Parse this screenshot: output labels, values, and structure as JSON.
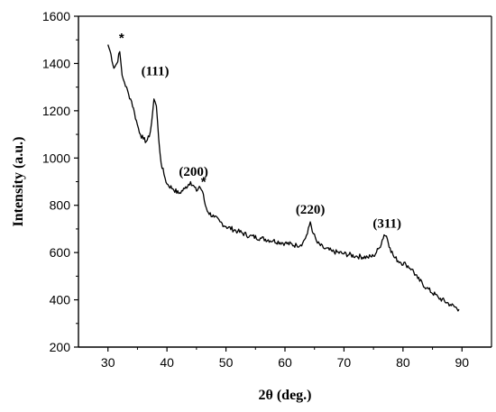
{
  "chart_data": {
    "type": "line",
    "xlabel": "2θ (deg.)",
    "ylabel": "Intensity (a.u.)",
    "xlim": [
      25,
      95
    ],
    "ylim": [
      200,
      1600
    ],
    "x_ticks": [
      30,
      40,
      50,
      60,
      70,
      80,
      90
    ],
    "y_ticks": [
      200,
      400,
      600,
      800,
      1000,
      1200,
      1400,
      1600
    ],
    "x_tick_labels": [
      "30",
      "40",
      "50",
      "60",
      "70",
      "80",
      "90"
    ],
    "y_tick_labels": [
      "200",
      "400",
      "600",
      "800",
      "1000",
      "1200",
      "1400",
      "1600"
    ],
    "grid": false,
    "line_color": "#000000",
    "series": [
      {
        "x": [
          30,
          30.5,
          31,
          31.5,
          32,
          32.4,
          32.8,
          33.5,
          34,
          34.5,
          35,
          35.5,
          36,
          36.5,
          37,
          37.4,
          37.8,
          38.2,
          38.6,
          39,
          39.5,
          40,
          41,
          42,
          43,
          44,
          45,
          45.5,
          46,
          46.5,
          47,
          48,
          49,
          50,
          52,
          54,
          56,
          58,
          60,
          62,
          63,
          63.8,
          64.3,
          64.8,
          65.5,
          66.5,
          68,
          70,
          72,
          74,
          75,
          76,
          76.8,
          77.2,
          77.8,
          78.5,
          79.5,
          80.5,
          81.5,
          82.5,
          84,
          86,
          88,
          89.5
        ],
        "y": [
          1480,
          1440,
          1380,
          1400,
          1450,
          1350,
          1320,
          1270,
          1240,
          1190,
          1140,
          1100,
          1080,
          1070,
          1090,
          1150,
          1250,
          1220,
          1080,
          980,
          930,
          890,
          870,
          850,
          870,
          900,
          860,
          880,
          860,
          800,
          770,
          750,
          730,
          710,
          690,
          670,
          660,
          650,
          640,
          630,
          640,
          680,
          730,
          680,
          640,
          620,
          605,
          595,
          585,
          580,
          585,
          620,
          675,
          670,
          620,
          580,
          560,
          550,
          530,
          490,
          450,
          410,
          380,
          360
        ]
      }
    ],
    "annotations": [
      {
        "text": "*",
        "x": 32.3,
        "y": 1490
      },
      {
        "text": "(111)",
        "x": 38,
        "y": 1350
      },
      {
        "text": "(200)",
        "x": 44.5,
        "y": 925
      },
      {
        "text": "*",
        "x": 46.2,
        "y": 880
      },
      {
        "text": "(220)",
        "x": 64.3,
        "y": 765
      },
      {
        "text": "(311)",
        "x": 77.3,
        "y": 705
      }
    ]
  }
}
